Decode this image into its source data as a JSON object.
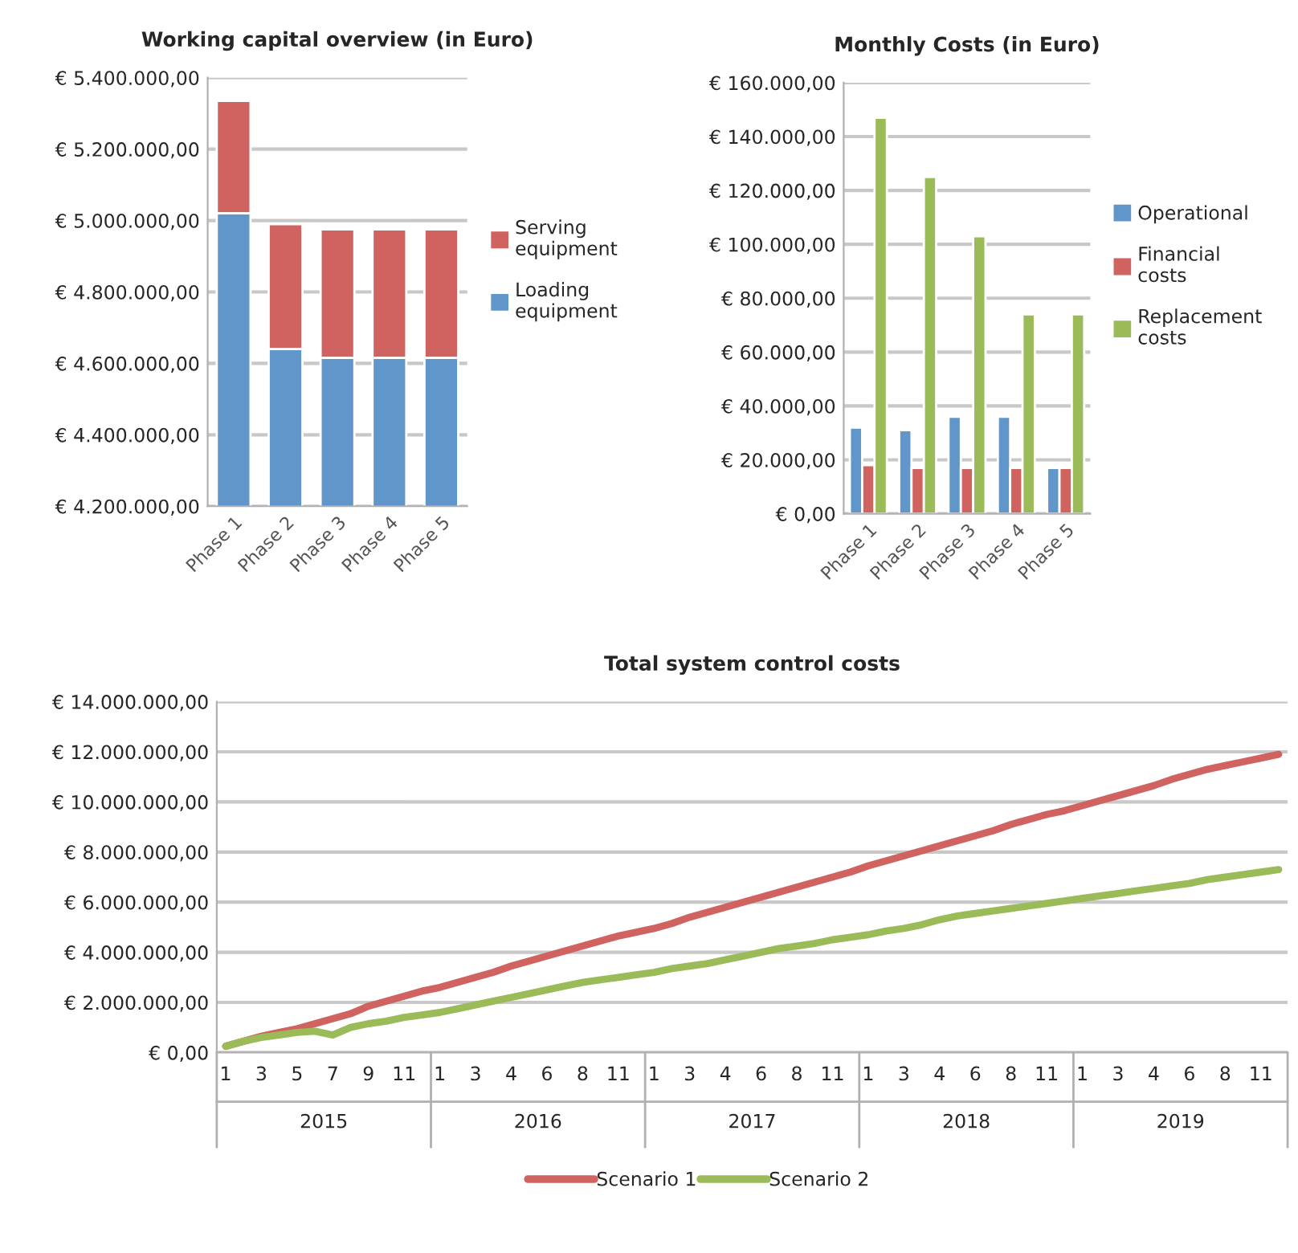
{
  "chart_data": [
    {
      "type": "bar",
      "title": "Working capital overview (in Euro)",
      "categories": [
        "Phase 1",
        "Phase 2",
        "Phase 3",
        "Phase 4",
        "Phase 5"
      ],
      "series": [
        {
          "name": "Serving equipment",
          "color": "#d0635f",
          "base": [
            5020000,
            4640000,
            4615000,
            4615000,
            4615000
          ],
          "values": [
            315000,
            350000,
            360000,
            360000,
            360000
          ]
        },
        {
          "name": "Loading equipment",
          "color": "#6096c9",
          "values": [
            5020000,
            4640000,
            4615000,
            4615000,
            4615000
          ]
        }
      ],
      "ylim": [
        4200000,
        5400000
      ],
      "yticks": [
        {
          "value": 4200000,
          "label": "€ 4.200.000,00"
        },
        {
          "value": 4400000,
          "label": "€ 4.400.000,00"
        },
        {
          "value": 4600000,
          "label": "€ 4.600.000,00"
        },
        {
          "value": 4800000,
          "label": "€ 4.800.000,00"
        },
        {
          "value": 5000000,
          "label": "€ 5.000.000,00"
        },
        {
          "value": 5200000,
          "label": "€ 5.200.000,00"
        },
        {
          "value": 5400000,
          "label": "€ 5.400.000,00"
        }
      ],
      "grid": "y",
      "legend": "right"
    },
    {
      "type": "bar",
      "title": "Monthly Costs (in Euro)",
      "categories": [
        "Phase 1",
        "Phase 2",
        "Phase 3",
        "Phase 4",
        "Phase 5"
      ],
      "series": [
        {
          "name": "Operational",
          "color": "#6096c9",
          "values": [
            32000,
            31000,
            36000,
            36000,
            17000
          ]
        },
        {
          "name": "Financial costs",
          "color": "#d0635f",
          "values": [
            18000,
            17000,
            17000,
            17000,
            17000
          ]
        },
        {
          "name": "Replacement costs",
          "color": "#9bbb59",
          "values": [
            147000,
            125000,
            103000,
            74000,
            74000
          ]
        }
      ],
      "ylim": [
        0,
        160000
      ],
      "yticks": [
        {
          "value": 0,
          "label": "€ 0,00"
        },
        {
          "value": 20000,
          "label": "€ 20.000,00"
        },
        {
          "value": 40000,
          "label": "€ 40.000,00"
        },
        {
          "value": 60000,
          "label": "€ 60.000,00"
        },
        {
          "value": 80000,
          "label": "€ 80.000,00"
        },
        {
          "value": 100000,
          "label": "€ 100.000,00"
        },
        {
          "value": 120000,
          "label": "€ 120.000,00"
        },
        {
          "value": 140000,
          "label": "€ 140.000,00"
        },
        {
          "value": 160000,
          "label": "€ 160.000,00"
        }
      ],
      "grid": "y",
      "legend": "right"
    },
    {
      "type": "line",
      "title": "Total system control costs",
      "categories": [
        "1",
        null,
        "3",
        null,
        "5",
        null,
        "7",
        null,
        "9",
        null,
        "11",
        null,
        "1",
        null,
        "3",
        null,
        "4",
        null,
        "6",
        null,
        "8",
        null,
        "11",
        null,
        "1",
        null,
        "3",
        null,
        "4",
        null,
        "6",
        null,
        "8",
        null,
        "11",
        null,
        "1",
        null,
        "3",
        null,
        "4",
        null,
        "6",
        null,
        "8",
        null,
        "11",
        null,
        "1",
        null,
        "3",
        null,
        "4",
        null,
        "6",
        null,
        "8",
        null,
        "11",
        null
      ],
      "annotations": [
        "2015",
        "2016",
        "2017",
        "2018",
        "2019"
      ],
      "series": [
        {
          "name": "Scenario 1",
          "color": "#d0635f",
          "values": [
            250000,
            450000,
            650000,
            800000,
            950000,
            1150000,
            1350000,
            1550000,
            1850000,
            2050000,
            2250000,
            2450000,
            2600000,
            2800000,
            3000000,
            3200000,
            3450000,
            3650000,
            3850000,
            4050000,
            4250000,
            4450000,
            4650000,
            4800000,
            4950000,
            5150000,
            5400000,
            5600000,
            5800000,
            6000000,
            6200000,
            6400000,
            6600000,
            6800000,
            7000000,
            7200000,
            7450000,
            7650000,
            7850000,
            8050000,
            8250000,
            8450000,
            8650000,
            8850000,
            9100000,
            9300000,
            9500000,
            9650000,
            9850000,
            10050000,
            10250000,
            10450000,
            10650000,
            10900000,
            11100000,
            11300000,
            11450000,
            11600000,
            11750000,
            11900000
          ]
        },
        {
          "name": "Scenario 2",
          "color": "#9bbb59",
          "values": [
            250000,
            450000,
            600000,
            700000,
            800000,
            850000,
            700000,
            1000000,
            1150000,
            1250000,
            1400000,
            1500000,
            1600000,
            1750000,
            1900000,
            2050000,
            2200000,
            2350000,
            2500000,
            2650000,
            2800000,
            2900000,
            3000000,
            3100000,
            3200000,
            3350000,
            3450000,
            3550000,
            3700000,
            3850000,
            4000000,
            4150000,
            4250000,
            4350000,
            4500000,
            4600000,
            4700000,
            4850000,
            4950000,
            5100000,
            5300000,
            5450000,
            5550000,
            5650000,
            5750000,
            5850000,
            5950000,
            6050000,
            6150000,
            6250000,
            6350000,
            6450000,
            6550000,
            6650000,
            6750000,
            6900000,
            7000000,
            7100000,
            7200000,
            7300000
          ]
        }
      ],
      "ylim": [
        0,
        14000000
      ],
      "yticks": [
        {
          "value": 0,
          "label": "€ 0,00"
        },
        {
          "value": 2000000,
          "label": "€ 2.000.000,00"
        },
        {
          "value": 4000000,
          "label": "€ 4.000.000,00"
        },
        {
          "value": 6000000,
          "label": "€ 6.000.000,00"
        },
        {
          "value": 8000000,
          "label": "€ 8.000.000,00"
        },
        {
          "value": 10000000,
          "label": "€ 10.000.000,00"
        },
        {
          "value": 12000000,
          "label": "€ 12.000.000,00"
        },
        {
          "value": 14000000,
          "label": "€ 14.000.000,00"
        }
      ],
      "grid": "y",
      "legend": "bottom",
      "marker": "none",
      "line_style": "solid"
    }
  ]
}
